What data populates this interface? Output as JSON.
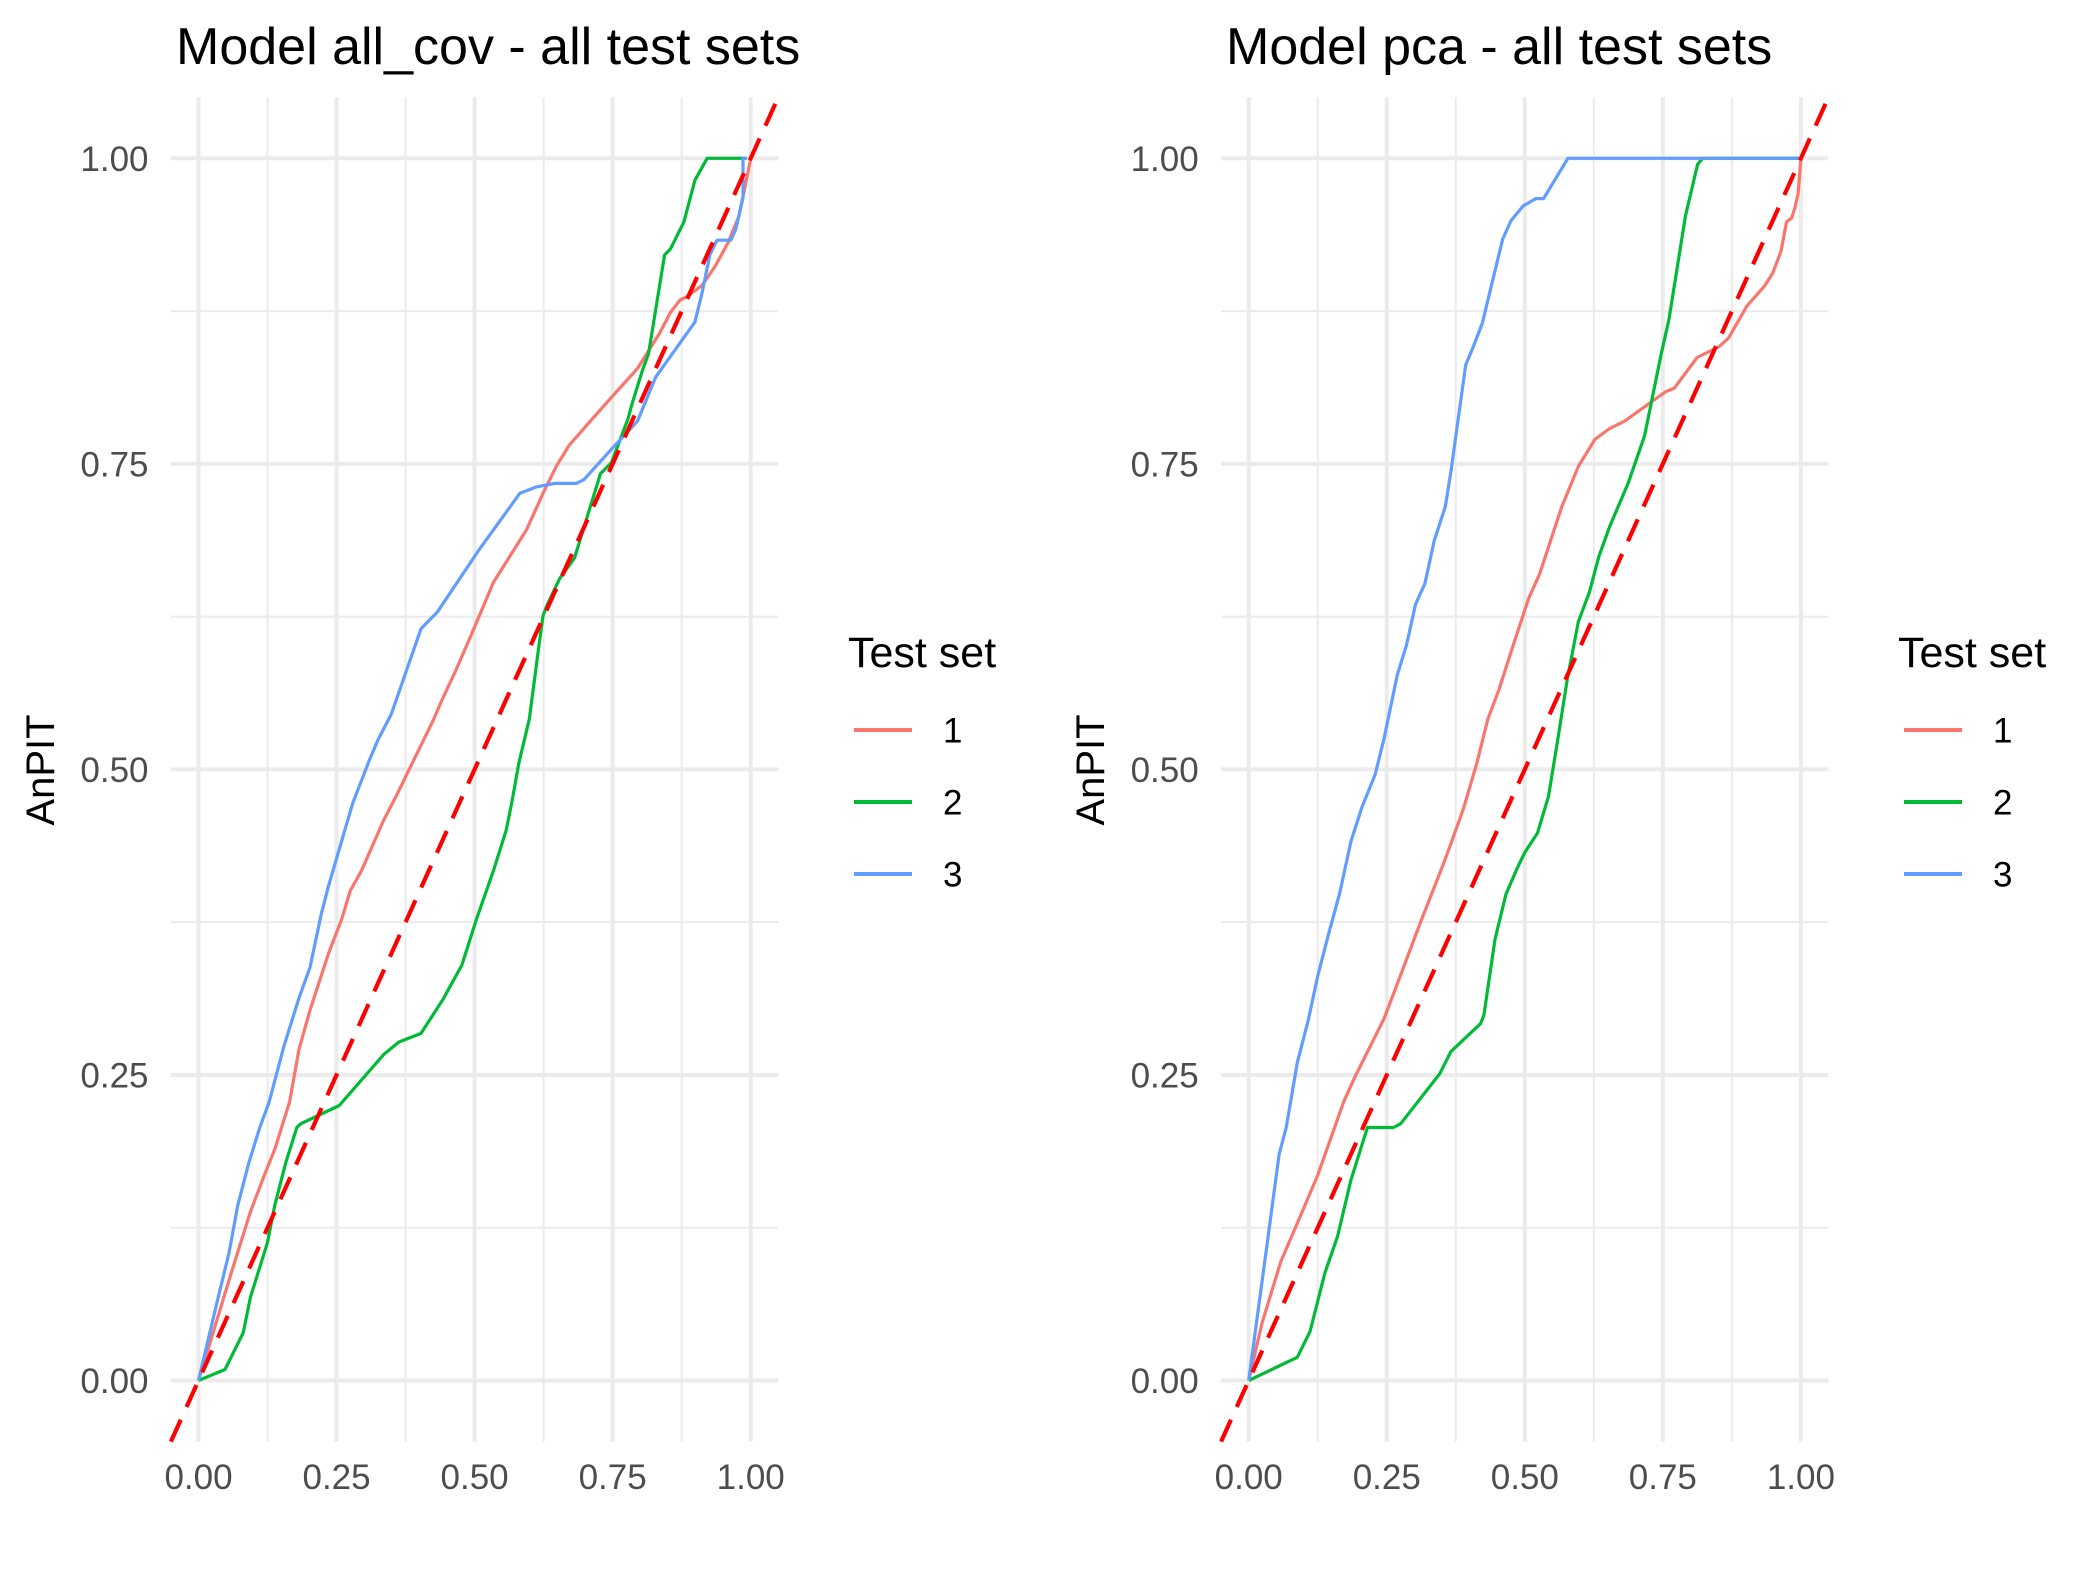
{
  "chart_data": [
    {
      "type": "line",
      "title": "Model all_cov - all test sets",
      "xlabel": "",
      "ylabel": "AnPIT",
      "xlim": [
        0,
        1
      ],
      "ylim": [
        0,
        1
      ],
      "x_ticks": [
        "0.00",
        "0.25",
        "0.50",
        "0.75",
        "1.00"
      ],
      "y_ticks": [
        "0.00",
        "0.25",
        "0.50",
        "0.75",
        "1.00"
      ],
      "x_tick_values": [
        0,
        0.25,
        0.5,
        0.75,
        1
      ],
      "y_tick_values": [
        0,
        0.25,
        0.5,
        0.75,
        1
      ],
      "grid": true,
      "legend": {
        "title": "Test set",
        "position": "right"
      },
      "reference_line": {
        "type": "dashed",
        "slope": 1,
        "intercept": 0,
        "color": "#FF0000"
      },
      "series": [
        {
          "name": "1",
          "color": "#F8766D",
          "points": [
            [
              0,
              0
            ],
            [
              0.027,
              0.04
            ],
            [
              0.058,
              0.086
            ],
            [
              0.094,
              0.138
            ],
            [
              0.121,
              0.17
            ],
            [
              0.138,
              0.189
            ],
            [
              0.165,
              0.228
            ],
            [
              0.182,
              0.271
            ],
            [
              0.202,
              0.303
            ],
            [
              0.235,
              0.349
            ],
            [
              0.259,
              0.377
            ],
            [
              0.275,
              0.401
            ],
            [
              0.295,
              0.417
            ],
            [
              0.336,
              0.459
            ],
            [
              0.359,
              0.479
            ],
            [
              0.386,
              0.504
            ],
            [
              0.426,
              0.541
            ],
            [
              0.44,
              0.556
            ],
            [
              0.466,
              0.581
            ],
            [
              0.493,
              0.609
            ],
            [
              0.534,
              0.653
            ],
            [
              0.594,
              0.696
            ],
            [
              0.624,
              0.726
            ],
            [
              0.648,
              0.748
            ],
            [
              0.671,
              0.765
            ],
            [
              0.704,
              0.782
            ],
            [
              0.745,
              0.803
            ],
            [
              0.795,
              0.828
            ],
            [
              0.835,
              0.857
            ],
            [
              0.855,
              0.874
            ],
            [
              0.872,
              0.884
            ],
            [
              0.885,
              0.887
            ],
            [
              0.912,
              0.896
            ],
            [
              0.936,
              0.912
            ],
            [
              0.959,
              0.931
            ],
            [
              0.979,
              0.953
            ],
            [
              0.993,
              0.984
            ],
            [
              1.0,
              1.0
            ]
          ]
        },
        {
          "name": "2",
          "color": "#00BA38",
          "points": [
            [
              0,
              0
            ],
            [
              0.048,
              0.009
            ],
            [
              0.081,
              0.039
            ],
            [
              0.094,
              0.068
            ],
            [
              0.125,
              0.113
            ],
            [
              0.138,
              0.143
            ],
            [
              0.158,
              0.178
            ],
            [
              0.178,
              0.207
            ],
            [
              0.185,
              0.21
            ],
            [
              0.255,
              0.225
            ],
            [
              0.336,
              0.267
            ],
            [
              0.363,
              0.277
            ],
            [
              0.403,
              0.284
            ],
            [
              0.443,
              0.312
            ],
            [
              0.477,
              0.34
            ],
            [
              0.503,
              0.377
            ],
            [
              0.534,
              0.417
            ],
            [
              0.557,
              0.45
            ],
            [
              0.567,
              0.472
            ],
            [
              0.58,
              0.505
            ],
            [
              0.599,
              0.541
            ],
            [
              0.617,
              0.603
            ],
            [
              0.624,
              0.626
            ],
            [
              0.631,
              0.634
            ],
            [
              0.654,
              0.656
            ],
            [
              0.681,
              0.673
            ],
            [
              0.728,
              0.742
            ],
            [
              0.748,
              0.751
            ],
            [
              0.778,
              0.787
            ],
            [
              0.785,
              0.799
            ],
            [
              0.805,
              0.828
            ],
            [
              0.815,
              0.84
            ],
            [
              0.844,
              0.921
            ],
            [
              0.855,
              0.926
            ],
            [
              0.879,
              0.948
            ],
            [
              0.899,
              0.982
            ],
            [
              0.921,
              1.0
            ],
            [
              0.993,
              1.0
            ]
          ]
        },
        {
          "name": "3",
          "color": "#619CFF",
          "points": [
            [
              0,
              0
            ],
            [
              0.034,
              0.065
            ],
            [
              0.055,
              0.104
            ],
            [
              0.071,
              0.143
            ],
            [
              0.091,
              0.178
            ],
            [
              0.111,
              0.207
            ],
            [
              0.128,
              0.228
            ],
            [
              0.155,
              0.274
            ],
            [
              0.182,
              0.313
            ],
            [
              0.202,
              0.338
            ],
            [
              0.222,
              0.381
            ],
            [
              0.235,
              0.404
            ],
            [
              0.259,
              0.441
            ],
            [
              0.279,
              0.472
            ],
            [
              0.309,
              0.507
            ],
            [
              0.326,
              0.525
            ],
            [
              0.349,
              0.545
            ],
            [
              0.403,
              0.615
            ],
            [
              0.433,
              0.629
            ],
            [
              0.507,
              0.679
            ],
            [
              0.582,
              0.726
            ],
            [
              0.611,
              0.731
            ],
            [
              0.644,
              0.734
            ],
            [
              0.684,
              0.734
            ],
            [
              0.698,
              0.737
            ],
            [
              0.748,
              0.762
            ],
            [
              0.795,
              0.785
            ],
            [
              0.828,
              0.821
            ],
            [
              0.899,
              0.866
            ],
            [
              0.912,
              0.89
            ],
            [
              0.926,
              0.921
            ],
            [
              0.939,
              0.933
            ],
            [
              0.964,
              0.933
            ],
            [
              0.973,
              0.942
            ],
            [
              0.986,
              0.968
            ],
            [
              0.986,
              1.0
            ],
            [
              0.993,
              1.0
            ]
          ]
        }
      ]
    },
    {
      "type": "line",
      "title": "Model pca - all test sets",
      "xlabel": "",
      "ylabel": "AnPIT",
      "xlim": [
        0,
        1
      ],
      "ylim": [
        0,
        1
      ],
      "x_ticks": [
        "0.00",
        "0.25",
        "0.50",
        "0.75",
        "1.00"
      ],
      "y_ticks": [
        "0.00",
        "0.25",
        "0.50",
        "0.75",
        "1.00"
      ],
      "x_tick_values": [
        0,
        0.25,
        0.5,
        0.75,
        1
      ],
      "y_tick_values": [
        0,
        0.25,
        0.5,
        0.75,
        1
      ],
      "grid": true,
      "legend": {
        "title": "Test set",
        "position": "right"
      },
      "reference_line": {
        "type": "dashed",
        "slope": 1,
        "intercept": 0,
        "color": "#FF0000"
      },
      "series": [
        {
          "name": "1",
          "color": "#F8766D",
          "points": [
            [
              0,
              0
            ],
            [
              0.024,
              0.047
            ],
            [
              0.058,
              0.097
            ],
            [
              0.091,
              0.132
            ],
            [
              0.125,
              0.168
            ],
            [
              0.172,
              0.228
            ],
            [
              0.192,
              0.248
            ],
            [
              0.245,
              0.296
            ],
            [
              0.272,
              0.328
            ],
            [
              0.312,
              0.376
            ],
            [
              0.352,
              0.422
            ],
            [
              0.366,
              0.439
            ],
            [
              0.389,
              0.468
            ],
            [
              0.413,
              0.505
            ],
            [
              0.433,
              0.541
            ],
            [
              0.453,
              0.565
            ],
            [
              0.48,
              0.603
            ],
            [
              0.507,
              0.64
            ],
            [
              0.527,
              0.66
            ],
            [
              0.567,
              0.715
            ],
            [
              0.597,
              0.748
            ],
            [
              0.627,
              0.77
            ],
            [
              0.654,
              0.779
            ],
            [
              0.681,
              0.785
            ],
            [
              0.721,
              0.798
            ],
            [
              0.755,
              0.809
            ],
            [
              0.771,
              0.812
            ],
            [
              0.812,
              0.837
            ],
            [
              0.852,
              0.846
            ],
            [
              0.869,
              0.853
            ],
            [
              0.902,
              0.879
            ],
            [
              0.935,
              0.896
            ],
            [
              0.949,
              0.906
            ],
            [
              0.964,
              0.924
            ],
            [
              0.974,
              0.948
            ],
            [
              0.983,
              0.951
            ],
            [
              0.989,
              0.959
            ],
            [
              0.995,
              0.971
            ],
            [
              1.0,
              1.0
            ]
          ]
        },
        {
          "name": "2",
          "color": "#00BA38",
          "points": [
            [
              0,
              0
            ],
            [
              0.088,
              0.019
            ],
            [
              0.111,
              0.04
            ],
            [
              0.138,
              0.088
            ],
            [
              0.161,
              0.118
            ],
            [
              0.185,
              0.164
            ],
            [
              0.215,
              0.207
            ],
            [
              0.262,
              0.207
            ],
            [
              0.275,
              0.21
            ],
            [
              0.346,
              0.251
            ],
            [
              0.366,
              0.269
            ],
            [
              0.42,
              0.292
            ],
            [
              0.426,
              0.299
            ],
            [
              0.446,
              0.361
            ],
            [
              0.466,
              0.398
            ],
            [
              0.486,
              0.419
            ],
            [
              0.5,
              0.432
            ],
            [
              0.523,
              0.448
            ],
            [
              0.543,
              0.478
            ],
            [
              0.56,
              0.525
            ],
            [
              0.577,
              0.574
            ],
            [
              0.597,
              0.621
            ],
            [
              0.617,
              0.645
            ],
            [
              0.634,
              0.674
            ],
            [
              0.654,
              0.699
            ],
            [
              0.687,
              0.734
            ],
            [
              0.717,
              0.773
            ],
            [
              0.747,
              0.84
            ],
            [
              0.761,
              0.868
            ],
            [
              0.791,
              0.953
            ],
            [
              0.813,
              0.995
            ],
            [
              0.822,
              1.0
            ],
            [
              1.0,
              1.0
            ]
          ]
        },
        {
          "name": "3",
          "color": "#619CFF",
          "points": [
            [
              0,
              0
            ],
            [
              0.034,
              0.114
            ],
            [
              0.055,
              0.185
            ],
            [
              0.068,
              0.207
            ],
            [
              0.088,
              0.26
            ],
            [
              0.108,
              0.295
            ],
            [
              0.125,
              0.331
            ],
            [
              0.145,
              0.366
            ],
            [
              0.165,
              0.399
            ],
            [
              0.185,
              0.441
            ],
            [
              0.205,
              0.469
            ],
            [
              0.229,
              0.496
            ],
            [
              0.245,
              0.525
            ],
            [
              0.269,
              0.577
            ],
            [
              0.286,
              0.602
            ],
            [
              0.302,
              0.635
            ],
            [
              0.319,
              0.652
            ],
            [
              0.336,
              0.687
            ],
            [
              0.356,
              0.715
            ],
            [
              0.366,
              0.743
            ],
            [
              0.393,
              0.831
            ],
            [
              0.406,
              0.845
            ],
            [
              0.423,
              0.865
            ],
            [
              0.46,
              0.934
            ],
            [
              0.475,
              0.949
            ],
            [
              0.497,
              0.961
            ],
            [
              0.52,
              0.967
            ],
            [
              0.534,
              0.967
            ],
            [
              0.578,
              1.0
            ],
            [
              1.0,
              1.0
            ]
          ]
        }
      ]
    }
  ]
}
